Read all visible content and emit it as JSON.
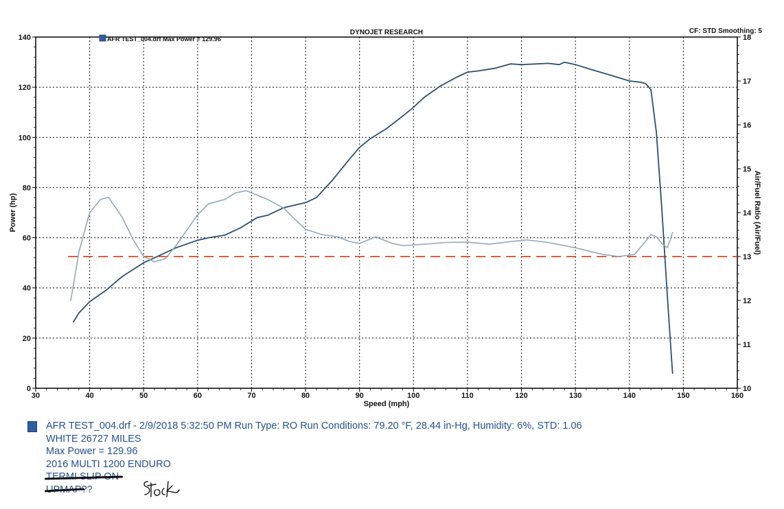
{
  "chart_data": {
    "type": "line",
    "title": "DYNOJET RESEARCH",
    "header_right": "CF: STD  Smoothing: 5",
    "legend_label": "AFR TEST_004.drf Max Power = 129.96",
    "xlabel": "Speed (mph)",
    "ylabel_left": "Power (hp)",
    "ylabel_right": "Air/Fuel Ratio (Air/Fuel)",
    "xlim": [
      30,
      160
    ],
    "ylim_left": [
      0,
      140
    ],
    "ylim_right": [
      10,
      18
    ],
    "x_ticks": [
      "30",
      "40",
      "50",
      "60",
      "70",
      "80",
      "90",
      "100",
      "110",
      "120",
      "130",
      "140",
      "150",
      "160"
    ],
    "y_left_ticks": [
      "0",
      "20",
      "40",
      "60",
      "80",
      "100",
      "120",
      "140"
    ],
    "y_right_ticks": [
      "10",
      "11",
      "12",
      "13",
      "14",
      "15",
      "16",
      "17",
      "18"
    ],
    "grid": true,
    "series": [
      {
        "axis": "left",
        "color": "#2c4f6e",
        "points": [
          [
            37,
            26.5
          ],
          [
            38,
            30
          ],
          [
            40,
            34.5
          ],
          [
            43,
            39
          ],
          [
            46,
            44.5
          ],
          [
            50,
            50
          ],
          [
            53,
            53
          ],
          [
            56,
            56
          ],
          [
            60,
            59
          ],
          [
            62,
            60
          ],
          [
            65,
            61
          ],
          [
            68,
            64
          ],
          [
            71,
            68
          ],
          [
            73,
            69
          ],
          [
            76,
            72
          ],
          [
            78,
            73
          ],
          [
            80,
            74
          ],
          [
            82,
            76
          ],
          [
            85,
            83
          ],
          [
            88,
            91
          ],
          [
            90,
            96
          ],
          [
            92,
            99.5
          ],
          [
            95,
            103.5
          ],
          [
            98,
            108.5
          ],
          [
            100,
            112
          ],
          [
            102,
            116
          ],
          [
            105,
            120.5
          ],
          [
            108,
            124
          ],
          [
            110,
            126
          ],
          [
            112,
            126.5
          ],
          [
            115,
            127.5
          ],
          [
            118,
            129.3
          ],
          [
            120,
            129
          ],
          [
            125,
            129.5
          ],
          [
            127,
            129
          ],
          [
            128,
            129.96
          ],
          [
            130,
            129
          ],
          [
            133,
            127
          ],
          [
            137,
            124.5
          ],
          [
            140,
            122.5
          ],
          [
            142,
            122
          ],
          [
            143,
            121.5
          ],
          [
            144,
            119
          ],
          [
            145,
            102
          ],
          [
            146,
            72
          ],
          [
            147,
            38
          ],
          [
            147.8,
            12
          ],
          [
            148,
            6
          ]
        ]
      },
      {
        "axis": "right",
        "color": "#90a8be",
        "points": [
          [
            36.5,
            12
          ],
          [
            38,
            13.1
          ],
          [
            40,
            14
          ],
          [
            42,
            14.3
          ],
          [
            43.5,
            14.35
          ],
          [
            46,
            13.9
          ],
          [
            48,
            13.4
          ],
          [
            50,
            13.0
          ],
          [
            52,
            12.88
          ],
          [
            54,
            12.95
          ],
          [
            56,
            13.25
          ],
          [
            58,
            13.6
          ],
          [
            60,
            13.95
          ],
          [
            62,
            14.2
          ],
          [
            65,
            14.3
          ],
          [
            67,
            14.45
          ],
          [
            69,
            14.5
          ],
          [
            71,
            14.4
          ],
          [
            73,
            14.3
          ],
          [
            76,
            14.1
          ],
          [
            78,
            13.85
          ],
          [
            80,
            13.62
          ],
          [
            83,
            13.5
          ],
          [
            86,
            13.45
          ],
          [
            88,
            13.35
          ],
          [
            90,
            13.3
          ],
          [
            93,
            13.45
          ],
          [
            96,
            13.3
          ],
          [
            98,
            13.25
          ],
          [
            102,
            13.28
          ],
          [
            106,
            13.32
          ],
          [
            110,
            13.33
          ],
          [
            114,
            13.28
          ],
          [
            118,
            13.34
          ],
          [
            121,
            13.38
          ],
          [
            125,
            13.32
          ],
          [
            130,
            13.2
          ],
          [
            135,
            13.05
          ],
          [
            138,
            13.0
          ],
          [
            141,
            13.05
          ],
          [
            143,
            13.35
          ],
          [
            144,
            13.5
          ],
          [
            145,
            13.45
          ],
          [
            146,
            13.3
          ],
          [
            147,
            13.2
          ],
          [
            147.5,
            13.35
          ],
          [
            148,
            13.55
          ]
        ]
      }
    ],
    "reference_line": {
      "axis": "right",
      "value": 13.0,
      "color": "#d9451f",
      "style": "dashed"
    }
  },
  "footer": {
    "run_line": "AFR TEST_004.drf - 2/9/2018 5:32:50 PM  Run Type: RO  Run Conditions: 79.20 °F, 28.44 in-Hg,  Humidity:  6%, STD: 1.06",
    "notes": [
      "WHITE 26727 MILES",
      "Max Power = 129.96",
      "2016 MULTI 1200 ENDURO"
    ],
    "struck_notes": [
      "TERMI SLIP ON",
      "UPMAP??"
    ],
    "handwritten_note": "stock"
  }
}
